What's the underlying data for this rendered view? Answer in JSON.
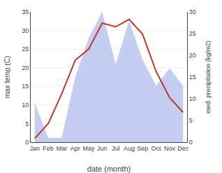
{
  "chart_data": {
    "type": "line",
    "categories": [
      "Jan",
      "Feb",
      "Mar",
      "Apr",
      "May",
      "Jun",
      "Jul",
      "Aug",
      "Sep",
      "Oct",
      "Nov",
      "Dec"
    ],
    "xlabel": "date (month)",
    "ylabel": "max temp (C)",
    "y2label": "med. precipitation (kg/m2)",
    "series": [
      {
        "type": "area",
        "color": "#c5cef0",
        "axis": "y2",
        "values": [
          9,
          1,
          1,
          15,
          24,
          30,
          18,
          28,
          19,
          13,
          17,
          13
        ]
      },
      {
        "type": "line",
        "color": "#c0392b",
        "values": [
          1,
          5,
          13,
          22,
          25,
          32,
          31,
          33,
          29,
          19,
          12,
          8
        ]
      }
    ],
    "ylim": [
      0,
      35
    ],
    "yticks": [
      0,
      5,
      10,
      15,
      20,
      25,
      30,
      35
    ],
    "y2lim": [
      0,
      30
    ],
    "y2ticks": [
      0,
      5,
      10,
      15,
      20,
      25,
      30
    ],
    "grid": true
  }
}
